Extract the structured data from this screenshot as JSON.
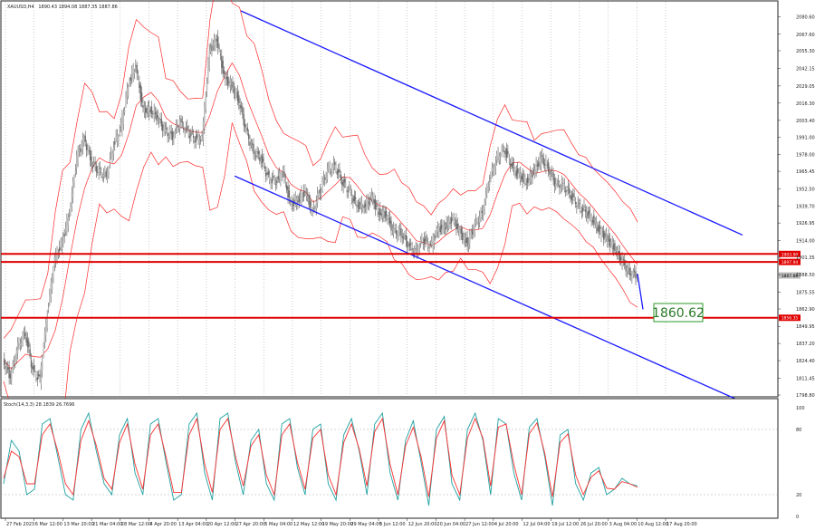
{
  "chart_data": [
    {
      "type": "candlestick",
      "panel": "price",
      "symbol_label": "XAUUSD,H4",
      "ohlc_readout": "1890.43 1894.08 1887.35 1887.86",
      "x_tick_labels": [
        "27 Feb 2023",
        "6 Mar 12:00",
        "13 Mar 20:00",
        "21 Mar 04:00",
        "28 Mar 12:00",
        "4 Apr 20:00",
        "13 Apr 04:00",
        "20 Apr 12:00",
        "27 Apr 20:00",
        "5 May 04:00",
        "12 May 12:00",
        "19 May 20:00",
        "29 May 04:00",
        "5 Jun 12:00",
        "12 Jun 20:00",
        "20 Jun 04:00",
        "27 Jun 12:00",
        "4 Jul 20:00",
        "12 Jul 04:00",
        "19 Jul 12:00",
        "26 Jul 20:00",
        "3 Aug 04:00",
        "10 Aug 12:00",
        "17 Aug 20:00"
      ],
      "y_tick_labels": [
        "2080.60",
        "2067.60",
        "2055.30",
        "2042.15",
        "2029.05",
        "2016.30",
        "2003.40",
        "1991.00",
        "1978.00",
        "1965.45",
        "1952.50",
        "1939.70",
        "1926.95",
        "1914.00",
        "1901.35",
        "1888.50",
        "1875.55",
        "1862.90",
        "1849.95",
        "1837.20",
        "1824.40",
        "1811.45",
        "1798.80"
      ],
      "ylim": [
        1798.8,
        2085.0
      ],
      "series": [
        {
          "name": "XAUUSD",
          "values": [
            1825,
            1812,
            1835,
            1845,
            1818,
            1810,
            1860,
            1900,
            1912,
            1935,
            1975,
            1990,
            1972,
            1965,
            1962,
            1985,
            1998,
            2030,
            2045,
            2010,
            2012,
            2005,
            1995,
            1992,
            2002,
            1995,
            1990,
            1990,
            2055,
            2065,
            2035,
            2030,
            2018,
            1995,
            1980,
            1975,
            1960,
            1958,
            1965,
            1940,
            1945,
            1950,
            1935,
            1952,
            1965,
            1970,
            1958,
            1950,
            1940,
            1940,
            1945,
            1935,
            1933,
            1920,
            1920,
            1910,
            1905,
            1915,
            1910,
            1922,
            1925,
            1930,
            1920,
            1912,
            1925,
            1935,
            1960,
            1975,
            1982,
            1970,
            1962,
            1958,
            1965,
            1975,
            1968,
            1955,
            1955,
            1948,
            1940,
            1935,
            1930,
            1920,
            1915,
            1908,
            1898,
            1890,
            1887.86
          ]
        },
        {
          "name": "Bollinger Bands",
          "color": "#ff2a2a"
        }
      ],
      "channel_upper": [
        {
          "x": "27 Apr 20:00",
          "y": 2085
        },
        {
          "x": "after 17 Aug 20:00",
          "y": 1918
        }
      ],
      "channel_lower": [
        {
          "x": "27 Apr 20:00",
          "y": 1962
        },
        {
          "x": "after 17 Aug 20:00",
          "y": 1796
        }
      ],
      "horizontal_levels": [
        {
          "value": 1903.9,
          "label": "1903.90",
          "color": "#e00000"
        },
        {
          "value": 1897.94,
          "label": "1897.94",
          "color": "#e00000"
        },
        {
          "value": 1887.86,
          "label": "1887.86",
          "color": "#bbbbbb",
          "current": true
        },
        {
          "value": 1856.35,
          "label": "1856.35",
          "color": "#e00000"
        }
      ],
      "projection": {
        "from": {
          "x": "17 Aug 20:00",
          "y": 1889
        },
        "to": {
          "y": 1860.62
        }
      },
      "target_label": "1860.62",
      "colors": {
        "channel": "#1a1aff",
        "levels": "#e00000",
        "bands": "#ff2a2a",
        "candles": "#888888",
        "target_box": "#2a9a2a"
      }
    },
    {
      "type": "line",
      "panel": "oscillator",
      "label": "Stoch(14,3,3) 28.1839 26.7696",
      "y_tick_labels": [
        "100",
        "80",
        "20",
        "0"
      ],
      "levels": [
        80,
        20
      ],
      "ylim": [
        0,
        100
      ],
      "series": [
        {
          "name": "%K",
          "color": "#20a0a0",
          "values": [
            30,
            70,
            60,
            20,
            25,
            85,
            90,
            55,
            20,
            15,
            80,
            95,
            60,
            30,
            20,
            75,
            90,
            40,
            20,
            85,
            90,
            50,
            15,
            20,
            85,
            95,
            40,
            15,
            90,
            95,
            50,
            20,
            70,
            80,
            30,
            15,
            85,
            90,
            45,
            20,
            80,
            85,
            30,
            15,
            75,
            90,
            60,
            20,
            85,
            95,
            40,
            15,
            70,
            88,
            50,
            10,
            80,
            92,
            30,
            15,
            80,
            95,
            70,
            20,
            90,
            85,
            40,
            15,
            82,
            90,
            55,
            10,
            75,
            80,
            30,
            15,
            40,
            45,
            20,
            25,
            35,
            30,
            28
          ]
        },
        {
          "name": "%D",
          "color": "#ff3030",
          "values": [
            35,
            60,
            55,
            30,
            30,
            75,
            85,
            60,
            30,
            20,
            70,
            88,
            65,
            35,
            25,
            68,
            85,
            48,
            25,
            75,
            85,
            55,
            22,
            22,
            75,
            90,
            48,
            22,
            80,
            90,
            55,
            28,
            65,
            75,
            38,
            20,
            75,
            85,
            50,
            25,
            72,
            80,
            38,
            20,
            68,
            85,
            62,
            28,
            78,
            90,
            48,
            20,
            65,
            82,
            55,
            18,
            72,
            88,
            38,
            20,
            72,
            90,
            72,
            28,
            82,
            85,
            48,
            20,
            76,
            86,
            58,
            18,
            68,
            76,
            38,
            20,
            36,
            42,
            26,
            25,
            32,
            30,
            26.77
          ]
        }
      ]
    }
  ]
}
